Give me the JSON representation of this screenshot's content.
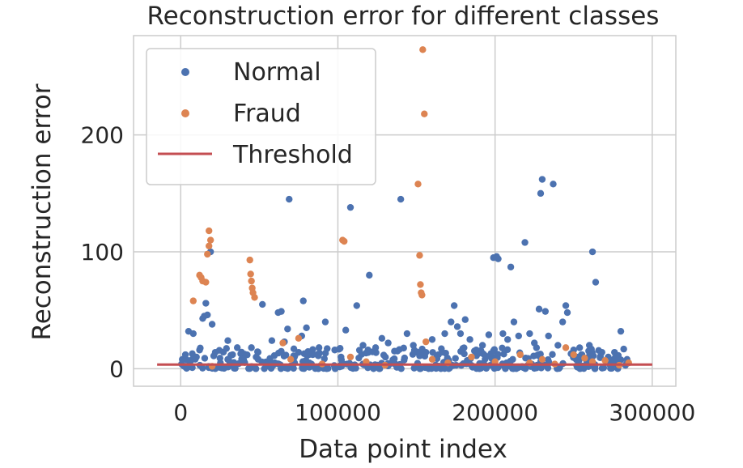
{
  "chart_data": {
    "type": "scatter",
    "title": "Reconstruction error for different classes",
    "xlabel": "Data point index",
    "ylabel": "Reconstruction error",
    "xlim": [
      -30000,
      315000
    ],
    "ylim": [
      -15,
      285
    ],
    "xticks": [
      0,
      100000,
      200000,
      300000
    ],
    "xtick_labels": [
      "0",
      "100000",
      "200000",
      "300000"
    ],
    "yticks": [
      0,
      100,
      200
    ],
    "ytick_labels": [
      "0",
      "100",
      "200"
    ],
    "grid": true,
    "legend_position": "top-left",
    "series": [
      {
        "name": "Normal",
        "color": "#4c72b0",
        "marker": "circle",
        "points": [
          [
            1000,
            8
          ],
          [
            3000,
            12
          ],
          [
            5000,
            32
          ],
          [
            8000,
            30
          ],
          [
            10000,
            10
          ],
          [
            12000,
            16
          ],
          [
            14000,
            43
          ],
          [
            15000,
            45
          ],
          [
            16000,
            56
          ],
          [
            17000,
            46
          ],
          [
            19000,
            100
          ],
          [
            20000,
            38
          ],
          [
            22000,
            14
          ],
          [
            25000,
            9
          ],
          [
            30000,
            24
          ],
          [
            33000,
            12
          ],
          [
            36000,
            18
          ],
          [
            40000,
            8
          ],
          [
            45000,
            18
          ],
          [
            48000,
            10
          ],
          [
            52000,
            55
          ],
          [
            58000,
            24
          ],
          [
            62000,
            48
          ],
          [
            64000,
            49
          ],
          [
            66000,
            23
          ],
          [
            68000,
            34
          ],
          [
            69000,
            145
          ],
          [
            72000,
            17
          ],
          [
            75000,
            14
          ],
          [
            77000,
            28
          ],
          [
            78000,
            58
          ],
          [
            80000,
            35
          ],
          [
            84000,
            12
          ],
          [
            88000,
            18
          ],
          [
            92000,
            40
          ],
          [
            98000,
            16
          ],
          [
            102000,
            10
          ],
          [
            105000,
            33
          ],
          [
            108000,
            138
          ],
          [
            112000,
            54
          ],
          [
            116000,
            20
          ],
          [
            120000,
            80
          ],
          [
            124000,
            18
          ],
          [
            128000,
            26
          ],
          [
            132000,
            22
          ],
          [
            136000,
            15
          ],
          [
            140000,
            145
          ],
          [
            144000,
            30
          ],
          [
            148000,
            20
          ],
          [
            152000,
            11
          ],
          [
            156000,
            14
          ],
          [
            160000,
            25
          ],
          [
            164000,
            12
          ],
          [
            168000,
            30
          ],
          [
            172000,
            40
          ],
          [
            174000,
            54
          ],
          [
            176000,
            36
          ],
          [
            178000,
            30
          ],
          [
            181000,
            42
          ],
          [
            184000,
            25
          ],
          [
            188000,
            16
          ],
          [
            192000,
            20
          ],
          [
            196000,
            29
          ],
          [
            199000,
            95
          ],
          [
            201000,
            96
          ],
          [
            202000,
            94
          ],
          [
            205000,
            30
          ],
          [
            208000,
            25
          ],
          [
            210000,
            87
          ],
          [
            212000,
            40
          ],
          [
            215000,
            28
          ],
          [
            219000,
            108
          ],
          [
            222000,
            30
          ],
          [
            225000,
            22
          ],
          [
            228000,
            51
          ],
          [
            229000,
            150
          ],
          [
            230000,
            162
          ],
          [
            232000,
            49
          ],
          [
            234000,
            28
          ],
          [
            237000,
            158
          ],
          [
            240000,
            20
          ],
          [
            243000,
            40
          ],
          [
            245000,
            54
          ],
          [
            246000,
            48
          ],
          [
            250000,
            16
          ],
          [
            255000,
            12
          ],
          [
            260000,
            20
          ],
          [
            262000,
            100
          ],
          [
            264000,
            74
          ],
          [
            268000,
            14
          ],
          [
            272000,
            10
          ],
          [
            276000,
            14
          ],
          [
            280000,
            32
          ],
          [
            284000,
            8
          ]
        ]
      },
      {
        "name": "Fraud",
        "color": "#dd8452",
        "marker": "circle",
        "points": [
          [
            8000,
            58
          ],
          [
            12000,
            80
          ],
          [
            13000,
            78
          ],
          [
            14000,
            75
          ],
          [
            16000,
            74
          ],
          [
            17000,
            98
          ],
          [
            18000,
            105
          ],
          [
            18000,
            118
          ],
          [
            19000,
            110
          ],
          [
            20000,
            2
          ],
          [
            44000,
            93
          ],
          [
            44500,
            81
          ],
          [
            45000,
            75
          ],
          [
            45500,
            69
          ],
          [
            46000,
            65
          ],
          [
            47000,
            61
          ],
          [
            65000,
            22
          ],
          [
            70000,
            8
          ],
          [
            75000,
            26
          ],
          [
            90000,
            4
          ],
          [
            103000,
            110
          ],
          [
            104000,
            109
          ],
          [
            108000,
            10
          ],
          [
            118000,
            6
          ],
          [
            130000,
            3
          ],
          [
            151000,
            158
          ],
          [
            152000,
            97
          ],
          [
            152500,
            72
          ],
          [
            153000,
            65
          ],
          [
            153500,
            63
          ],
          [
            154000,
            273
          ],
          [
            155000,
            218
          ],
          [
            156000,
            23
          ],
          [
            160000,
            8
          ],
          [
            170000,
            5
          ],
          [
            185000,
            10
          ],
          [
            200000,
            6
          ],
          [
            216000,
            12
          ],
          [
            222000,
            5
          ],
          [
            230000,
            8
          ],
          [
            238000,
            4
          ],
          [
            245000,
            18
          ],
          [
            250000,
            12
          ],
          [
            257000,
            9
          ],
          [
            262000,
            6
          ],
          [
            270000,
            7
          ],
          [
            279000,
            3
          ],
          [
            285000,
            5
          ]
        ]
      }
    ],
    "threshold": {
      "name": "Threshold",
      "value": 3.5,
      "x_range": [
        -15000,
        300000
      ],
      "color": "#c44e52"
    },
    "dense_band": {
      "series": "Normal",
      "x_range": [
        0,
        285000
      ],
      "y_range": [
        0,
        18
      ],
      "count": 360
    }
  }
}
